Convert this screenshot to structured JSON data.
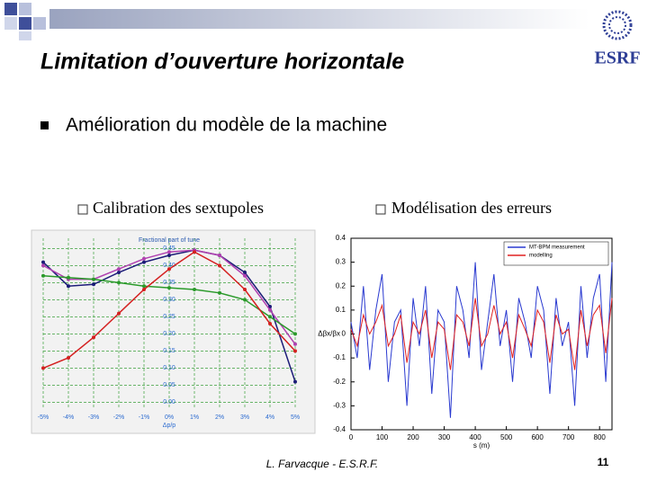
{
  "slide": {
    "title": "Limitation d’ouverture horizontale",
    "logo": "ESRF",
    "bullet": "Amélioration du modèle de la machine",
    "sub_bullets": [
      "Calibration des sextupoles",
      "Modélisation des erreurs"
    ],
    "footer": "L. Farvacque - E.S.R.F.",
    "page_number": "11"
  },
  "chart_data": [
    {
      "type": "line",
      "title": "Fractional part of tune",
      "xlabel": "Δp/p",
      "grid": true,
      "x": [
        -5,
        -4,
        -3,
        -2,
        -1,
        0,
        1,
        2,
        3,
        4,
        5
      ],
      "xlim": [
        -5,
        5
      ],
      "xticks": [
        {
          "value": -5,
          "label": "-5%"
        },
        {
          "value": -4,
          "label": "-4%"
        },
        {
          "value": -3,
          "label": "-3%"
        },
        {
          "value": -2,
          "label": "-2%"
        },
        {
          "value": -1,
          "label": "-1%"
        },
        {
          "value": 0,
          "label": "0%"
        },
        {
          "value": 1,
          "label": "1%"
        },
        {
          "value": 2,
          "label": "2%"
        },
        {
          "value": 3,
          "label": "3%"
        },
        {
          "value": 4,
          "label": "4%"
        },
        {
          "value": 5,
          "label": "5%"
        }
      ],
      "ylim": [
        -0.02,
        0.48
      ],
      "yticks": [
        {
          "value": 0,
          "label": "0.00"
        },
        0.05,
        {
          "value": 0.1,
          "label": "0.10"
        },
        0.15,
        {
          "value": 0.2,
          "label": "0.20"
        },
        0.25,
        {
          "value": 0.3,
          "label": "0.30"
        },
        0.35,
        {
          "value": 0.4,
          "label": "0.40"
        },
        0.45
      ],
      "series": [
        {
          "color": "#1c1c78",
          "values": [
            0.41,
            0.34,
            0.345,
            0.38,
            0.41,
            0.43,
            0.445,
            0.43,
            0.38,
            0.28,
            0.06
          ]
        },
        {
          "color": "#b040b0",
          "values": [
            0.4,
            0.36,
            0.36,
            0.39,
            0.42,
            0.44,
            0.445,
            0.43,
            0.37,
            0.27,
            0.17
          ]
        },
        {
          "color": "#2a9a2a",
          "values": [
            0.37,
            0.365,
            0.36,
            0.35,
            0.34,
            0.335,
            0.33,
            0.32,
            0.3,
            0.25,
            0.2
          ]
        },
        {
          "color": "#d42020",
          "values": [
            0.1,
            0.13,
            0.19,
            0.26,
            0.33,
            0.39,
            0.44,
            0.4,
            0.33,
            0.23,
            0.15
          ]
        }
      ]
    },
    {
      "type": "line",
      "xlabel": "s (m)",
      "ylabel": "Δβx/βx",
      "x": [
        0,
        20,
        40,
        60,
        80,
        100,
        120,
        140,
        160,
        180,
        200,
        220,
        240,
        260,
        280,
        300,
        320,
        340,
        360,
        380,
        400,
        420,
        440,
        460,
        480,
        500,
        520,
        540,
        560,
        580,
        600,
        620,
        640,
        660,
        680,
        700,
        720,
        740,
        760,
        780,
        800,
        820,
        840
      ],
      "xlim": [
        0,
        840
      ],
      "xticks": [
        0,
        100,
        200,
        300,
        400,
        500,
        600,
        700,
        800
      ],
      "ylim": [
        -0.4,
        0.4
      ],
      "yticks": [
        -0.4,
        -0.3,
        -0.2,
        -0.1,
        0,
        0.1,
        0.2,
        0.3,
        0.4
      ],
      "series": [
        {
          "name": "MT-BPM measurement",
          "color": "#2a3ad0",
          "values": [
            0.05,
            -0.1,
            0.2,
            -0.15,
            0.1,
            0.25,
            -0.2,
            0.05,
            0.1,
            -0.3,
            0.15,
            -0.05,
            0.2,
            -0.25,
            0.1,
            0.05,
            -0.35,
            0.2,
            0.1,
            -0.1,
            0.3,
            -0.15,
            0.05,
            0.25,
            -0.05,
            0.1,
            -0.2,
            0.15,
            0.05,
            -0.1,
            0.2,
            0.1,
            -0.25,
            0.15,
            -0.05,
            0.05,
            -0.3,
            0.2,
            -0.1,
            0.15,
            0.25,
            -0.2,
            0.3
          ]
        },
        {
          "name": "modelling",
          "color": "#e02020",
          "values": [
            0.02,
            -0.05,
            0.08,
            0,
            0.05,
            0.12,
            -0.05,
            0,
            0.08,
            -0.12,
            0.05,
            0,
            0.1,
            -0.1,
            0.05,
            0.02,
            -0.15,
            0.08,
            0.05,
            -0.05,
            0.15,
            -0.05,
            0,
            0.12,
            0,
            0.05,
            -0.1,
            0.08,
            0.02,
            -0.05,
            0.1,
            0.05,
            -0.12,
            0.08,
            0,
            0.02,
            -0.15,
            0.1,
            -0.05,
            0.08,
            0.12,
            -0.08,
            0.15
          ]
        }
      ]
    }
  ]
}
